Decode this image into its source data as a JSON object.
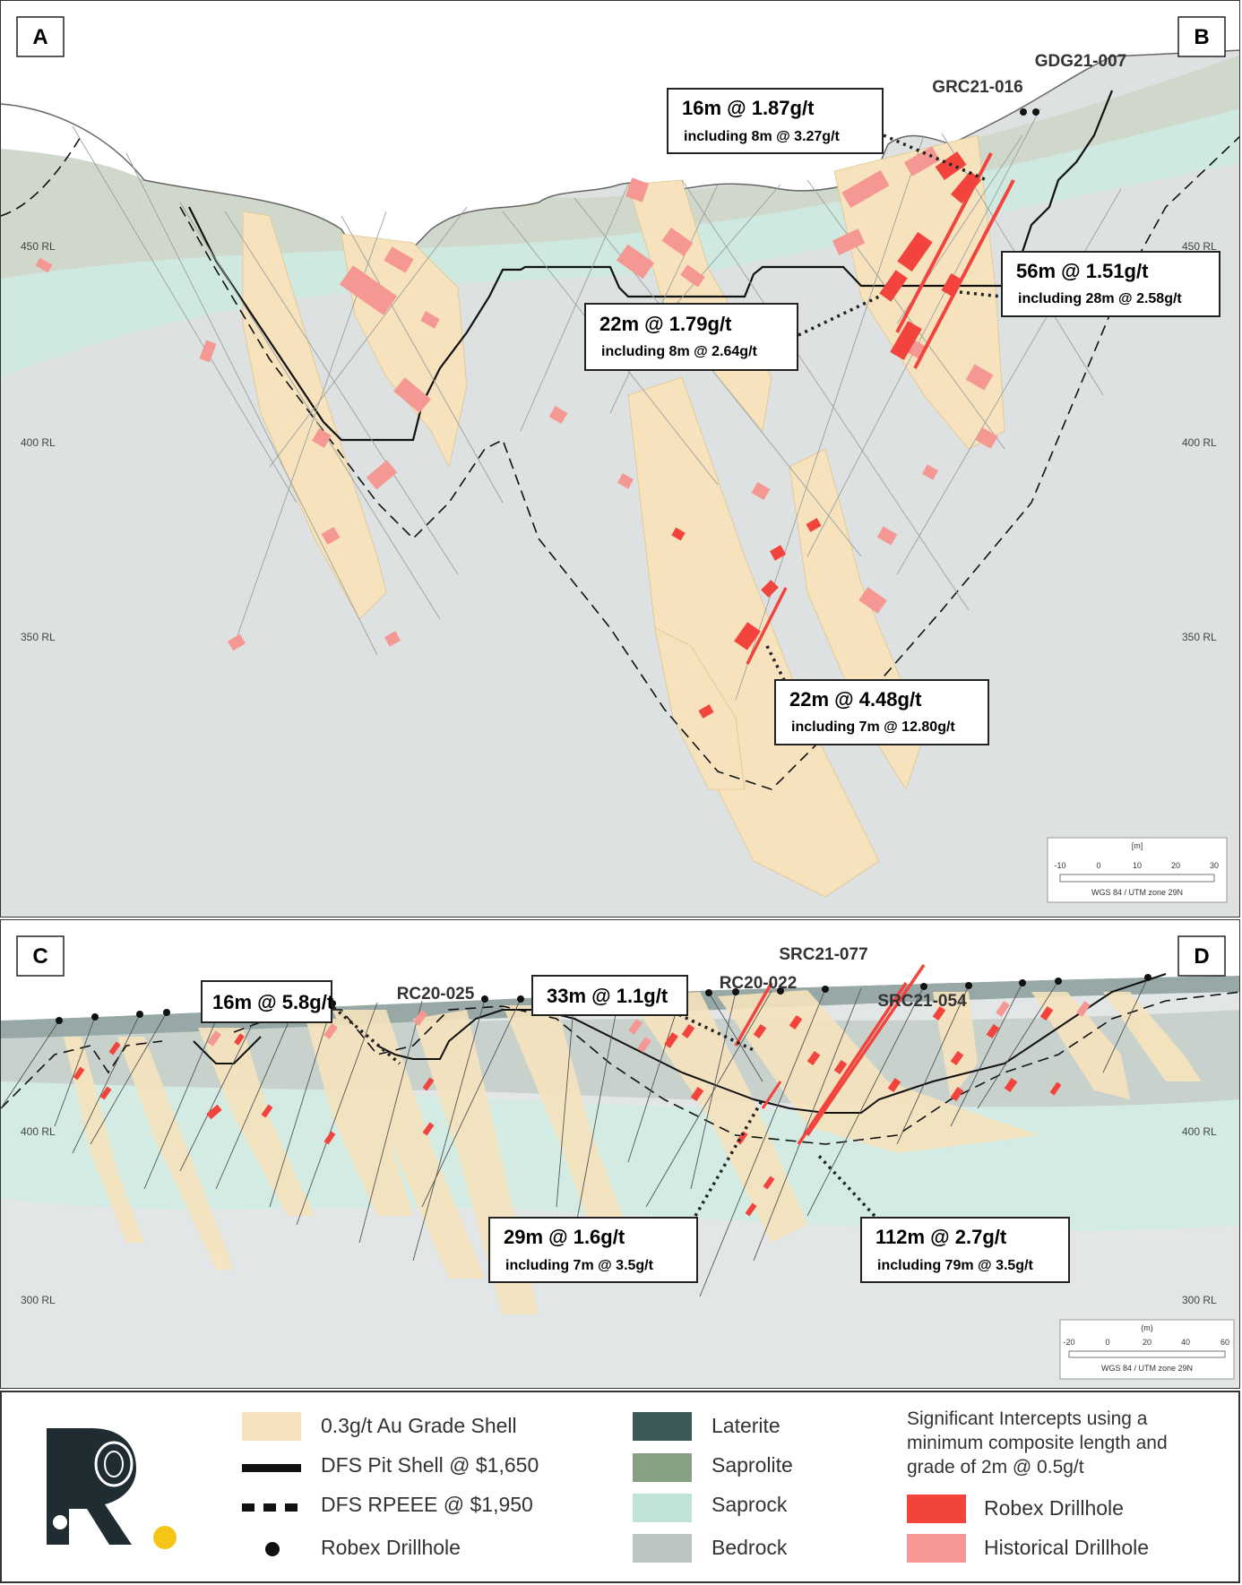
{
  "section_ab": {
    "corner_left": "A",
    "corner_right": "B",
    "holes": [
      "GRC21-016",
      "GDG21-007"
    ],
    "rl_labels": [
      "450 RL",
      "400 RL",
      "350 RL"
    ],
    "intercepts": [
      {
        "head": "16m @ 1.87g/t",
        "sub": "including 8m @ 3.27g/t"
      },
      {
        "head": "56m @ 1.51g/t",
        "sub": "including 28m @ 2.58g/t"
      },
      {
        "head": "22m @ 1.79g/t",
        "sub": "including 8m @ 2.64g/t"
      },
      {
        "head": "22m @ 4.48g/t",
        "sub": "including 7m @ 12.80g/t"
      }
    ],
    "scale": {
      "unit": "[m]",
      "ticks": [
        "-10",
        "0",
        "10",
        "20",
        "30"
      ],
      "crs": "WGS 84 / UTM zone 29N"
    }
  },
  "section_cd": {
    "corner_left": "C",
    "corner_right": "D",
    "holes": [
      "RC20-025",
      "RC20-022",
      "SRC21-077",
      "SRC21-054"
    ],
    "rl_labels": [
      "400 RL",
      "300 RL"
    ],
    "intercepts": [
      {
        "head": "16m @ 5.8g/t",
        "sub": ""
      },
      {
        "head": "33m @ 1.1g/t",
        "sub": ""
      },
      {
        "head": "29m @ 1.6g/t",
        "sub": "including 7m @ 3.5g/t"
      },
      {
        "head": "112m @ 2.7g/t",
        "sub": "including 79m @ 3.5g/t"
      }
    ],
    "scale": {
      "unit": "(m)",
      "ticks": [
        "-20",
        "0",
        "20",
        "40",
        "60"
      ],
      "crs": "WGS 84 / UTM zone 29N"
    }
  },
  "legend": {
    "grade_shell": "0.3g/t Au Grade Shell",
    "pit_shell": "DFS Pit Shell @ $1,650",
    "rpeee": "DFS RPEEE @ $1,950",
    "robex_collar": "Robex Drillhole",
    "laterite": "Laterite",
    "saprolite": "Saprolite",
    "saprock": "Saprock",
    "bedrock": "Bedrock",
    "intercepts_title": "Significant Intercepts using a minimum composite length and grade of 2m @ 0.5g/t",
    "robex_drillhole": "Robex Drillhole",
    "historical_drillhole": "Historical Drillhole"
  },
  "colors": {
    "grade_shell": "#f6e3bd",
    "laterite": "#3c5857",
    "saprolite": "#87a083",
    "saprock": "#bfe3d6",
    "bedrock": "#bcc4c4",
    "robex": "#f2433d",
    "historical": "#f59893"
  }
}
